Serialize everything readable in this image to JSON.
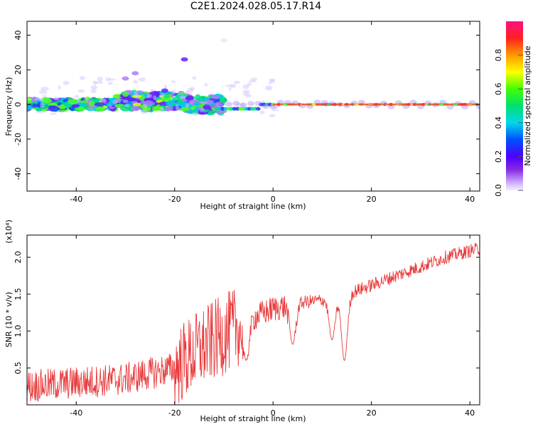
{
  "title": "C2E1.2024.028.05.17.R14",
  "chart_data": [
    {
      "type": "heatmap",
      "xlabel": "Height of straight line (km)",
      "ylabel": "Frequency (Hz)",
      "xlim": [
        -50,
        42
      ],
      "ylim": [
        -50,
        48
      ],
      "x_ticks": [
        "-40",
        "-20",
        "0",
        "20",
        "40"
      ],
      "y_ticks": [
        "-40",
        "-20",
        "0",
        "20",
        "40"
      ],
      "colorbar": {
        "label": "Normalized spectral amplitude",
        "range": [
          0.0,
          1.0
        ],
        "ticks": [
          "0.0",
          "0.2",
          "0.4",
          "0.6",
          "0.8"
        ],
        "colormap": "rainbow (white-violet-blue-cyan-green-yellow-orange-red-magenta)"
      },
      "ridge_frequency_hz": 0,
      "grid": false
    },
    {
      "type": "line",
      "xlabel": "Height of straight line (km)",
      "ylabel": "SNR (10 * v/v)",
      "y_multiplier": "(x10⁴)",
      "xlim": [
        -50,
        42
      ],
      "ylim": [
        0.0,
        2.3
      ],
      "x_ticks": [
        "-40",
        "-20",
        "0",
        "20",
        "40"
      ],
      "y_ticks": [
        "0.5",
        "1.0",
        "1.5",
        "2.0"
      ],
      "series_color": "#e8383a",
      "grid": false,
      "trend": {
        "x": [
          -50,
          -40,
          -30,
          -20,
          -15,
          -10,
          -5,
          0,
          5,
          10,
          15,
          20,
          25,
          30,
          35,
          42
        ],
        "y": [
          0.25,
          0.3,
          0.35,
          0.5,
          0.75,
          0.95,
          1.15,
          1.3,
          1.38,
          1.42,
          1.5,
          1.62,
          1.75,
          1.87,
          2.0,
          2.12
        ]
      },
      "dips": [
        {
          "x": 4,
          "y": 0.82
        },
        {
          "x": 12,
          "y": 0.88
        },
        {
          "x": 14.5,
          "y": 0.6
        },
        {
          "x": -5.5,
          "y": 0.6
        }
      ]
    }
  ]
}
